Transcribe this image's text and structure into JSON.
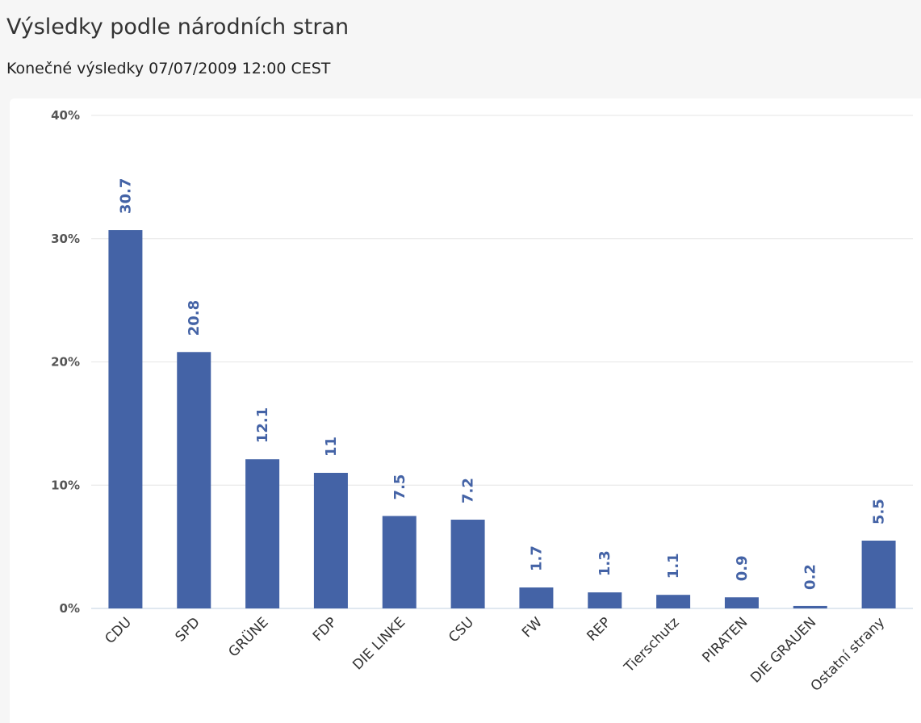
{
  "page": {
    "title": "Výsledky podle národních stran",
    "subtitle": "Konečné výsledky 07/07/2009 12:00 CEST"
  },
  "chart_data": {
    "type": "bar",
    "title": "Výsledky podle národních stran",
    "subtitle": "Konečné výsledky 07/07/2009 12:00 CEST",
    "categories": [
      "CDU",
      "SPD",
      "GRÜNE",
      "FDP",
      "DIE LINKE",
      "CSU",
      "FW",
      "REP",
      "Tierschutz",
      "PIRATEN",
      "DIE GRAUEN",
      "Ostatní strany"
    ],
    "values": [
      30.7,
      20.8,
      12.1,
      11,
      7.5,
      7.2,
      1.7,
      1.3,
      1.1,
      0.9,
      0.2,
      5.5
    ],
    "value_labels": [
      "30.7",
      "20.8",
      "12.1",
      "11",
      "7.5",
      "7.2",
      "1.7",
      "1.3",
      "1.1",
      "0.9",
      "0.2",
      "5.5"
    ],
    "y_ticks": [
      0,
      10,
      20,
      30,
      40
    ],
    "y_tick_labels": [
      "0%",
      "10%",
      "20%",
      "30%",
      "40%"
    ],
    "ylim": [
      0,
      40
    ],
    "xlabel": "",
    "ylabel": "",
    "grid": true,
    "legend": "none",
    "bar_color": "#4463a6",
    "label_color": "#4463a6",
    "grid_color": "#e6e6e6",
    "axis_color": "#c0d0e0"
  }
}
